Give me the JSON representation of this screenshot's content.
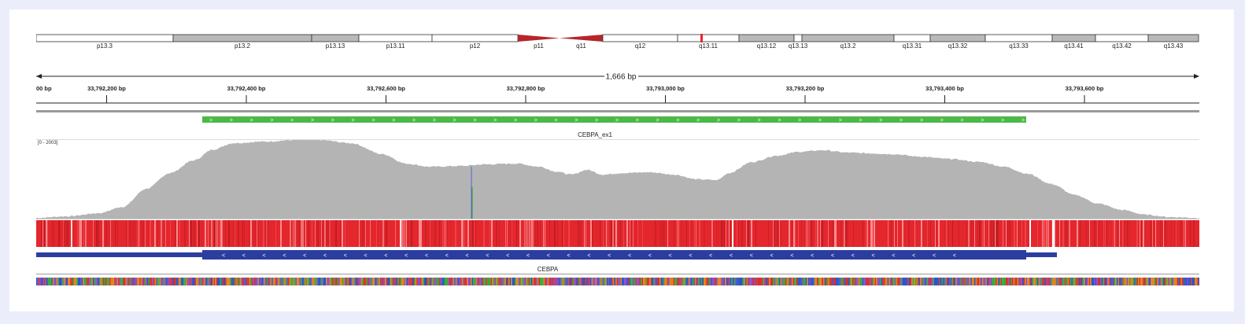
{
  "ideogram": {
    "bands": [
      {
        "name": "p13.3",
        "start": 0,
        "end": 174,
        "stain": "white"
      },
      {
        "name": "p13.2",
        "start": 174,
        "end": 350,
        "stain": "gray"
      },
      {
        "name": "p13.13",
        "start": 350,
        "end": 410,
        "stain": "gray"
      },
      {
        "name": "p13.11",
        "start": 410,
        "end": 503,
        "stain": "white"
      },
      {
        "name": "p12",
        "start": 503,
        "end": 612,
        "stain": "white"
      },
      {
        "name": "p11",
        "start": 612,
        "end": 665,
        "stain": "centromere-p"
      },
      {
        "name": "q11",
        "start": 665,
        "end": 720,
        "stain": "centromere-q"
      },
      {
        "name": "q12",
        "start": 720,
        "end": 815,
        "stain": "white"
      },
      {
        "name": "q13.11",
        "start": 815,
        "end": 893,
        "stain": "white"
      },
      {
        "name": "q13.12",
        "start": 893,
        "end": 963,
        "stain": "gray"
      },
      {
        "name": "q13.13",
        "start": 963,
        "end": 973,
        "stain": "white"
      },
      {
        "name": "q13.2",
        "start": 973,
        "end": 1090,
        "stain": "gray"
      },
      {
        "name": "q13.31",
        "start": 1090,
        "end": 1136,
        "stain": "white"
      },
      {
        "name": "q13.32",
        "start": 1136,
        "end": 1206,
        "stain": "gray"
      },
      {
        "name": "q13.33",
        "start": 1206,
        "end": 1291,
        "stain": "white"
      },
      {
        "name": "q13.41",
        "start": 1291,
        "end": 1346,
        "stain": "gray"
      },
      {
        "name": "q13.42",
        "start": 1346,
        "end": 1413,
        "stain": "white"
      },
      {
        "name": "q13.43",
        "start": 1413,
        "end": 1477,
        "stain": "gray"
      }
    ],
    "highlight_color": "#e8242d"
  },
  "ruler": {
    "span_label": "1,666 bp",
    "ticks": [
      {
        "label": "00 bp"
      },
      {
        "label": "33,792,200 bp"
      },
      {
        "label": "33,792,400 bp"
      },
      {
        "label": "33,792,600 bp"
      },
      {
        "label": "33,792,800 bp"
      },
      {
        "label": "33,793,000 bp"
      },
      {
        "label": "33,793,200 bp"
      },
      {
        "label": "33,793,400 bp"
      },
      {
        "label": "33,793,600 bp"
      }
    ]
  },
  "region_track": {
    "label": "CEBPA_ex1",
    "color": "#4cb848",
    "strand_glyph": ">"
  },
  "coverage_track": {
    "range_label": "[0 - 2003]",
    "fill_color": "#b4b4b4"
  },
  "heatmap_track": {
    "color": "#e4262d"
  },
  "gene_track": {
    "label": "CEBPA",
    "color": "#2b3ea0",
    "strand_glyph": "<"
  },
  "sequence_track": {
    "colors": [
      "#3aa83a",
      "#2b55c7",
      "#e0821c",
      "#d63031",
      "#8a4fc0"
    ]
  }
}
